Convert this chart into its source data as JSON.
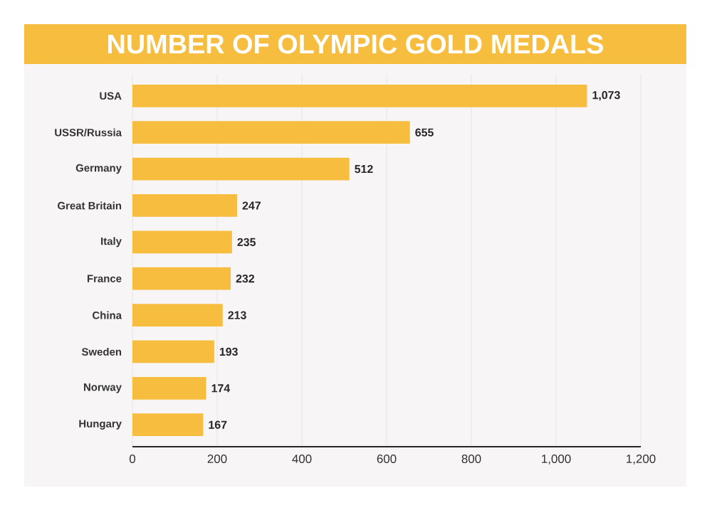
{
  "chart_data": {
    "type": "bar",
    "orientation": "horizontal",
    "title": "NUMBER OF OLYMPIC GOLD MEDALS",
    "categories": [
      "USA",
      "USSR/Russia",
      "Germany",
      "Great Britain",
      "Italy",
      "France",
      "China",
      "Sweden",
      "Norway",
      "Hungary"
    ],
    "values": [
      1073,
      655,
      512,
      247,
      235,
      232,
      213,
      193,
      174,
      167
    ],
    "value_labels": [
      "1,073",
      "655",
      "512",
      "247",
      "235",
      "232",
      "213",
      "193",
      "174",
      "167"
    ],
    "color": "#f7bd3f",
    "xlim": [
      0,
      1200
    ],
    "xticks": [
      0,
      200,
      400,
      600,
      800,
      {
        "value": 1000,
        "label": "1,000"
      },
      {
        "value": 1200,
        "label": "1,200"
      }
    ],
    "grid": "x"
  }
}
